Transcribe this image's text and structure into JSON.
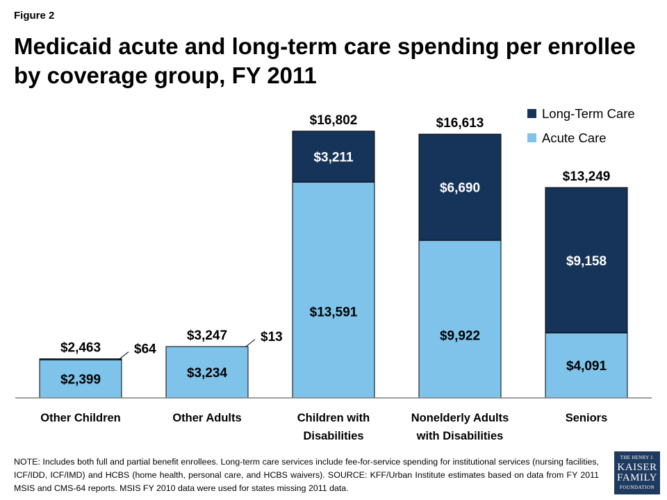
{
  "figure_label": "Figure 2",
  "title": "Medicaid acute and long-term care spending per enrollee by coverage group, FY 2011",
  "note": "NOTE:  Includes both full and partial benefit enrollees.  Long-term care services include fee-for-service spending for institutional services (nursing facilities, ICF/IDD, ICF/IMD) and HCBS (home health, personal care, and HCBS waivers).  SOURCE: KFF/Urban Institute estimates based on data  from FY 2011 MSIS and CMS-64 reports. MSIS FY 2010 data were used for states missing 2011 data.",
  "logo": {
    "line1": "THE HENRY J.",
    "line2": "KAISER",
    "line3": "FAMILY",
    "line4": "FOUNDATION"
  },
  "colors": {
    "acute": "#7fc3ea",
    "long_term": "#163459"
  },
  "chart_data": {
    "type": "bar",
    "stacked": true,
    "categories": [
      [
        "Other Children"
      ],
      [
        "Other Adults"
      ],
      [
        "Children with",
        "Disabilities"
      ],
      [
        "Nonelderly Adults",
        "with Disabilities"
      ],
      [
        "Seniors"
      ]
    ],
    "series": [
      {
        "name": "Acute Care",
        "values": [
          2399,
          3234,
          13591,
          9922,
          4091
        ],
        "labels": [
          "$2,399",
          "$3,234",
          "$13,591",
          "$9,922",
          "$4,091"
        ]
      },
      {
        "name": "Long-Term Care",
        "values": [
          64,
          13,
          3211,
          6690,
          9158
        ],
        "labels": [
          "$64",
          "$13",
          "$3,211",
          "$6,690",
          "$9,158"
        ]
      }
    ],
    "totals": [
      2463,
      3247,
      16802,
      16613,
      13249
    ],
    "total_labels": [
      "$2,463",
      "$3,247",
      "$16,802",
      "$16,613",
      "$13,249"
    ],
    "legend": [
      "Long-Term Care",
      "Acute Care"
    ],
    "legend_position": "top-right",
    "ylim": [
      0,
      18500
    ],
    "grid": false,
    "title": "",
    "xlabel": "",
    "ylabel": ""
  }
}
